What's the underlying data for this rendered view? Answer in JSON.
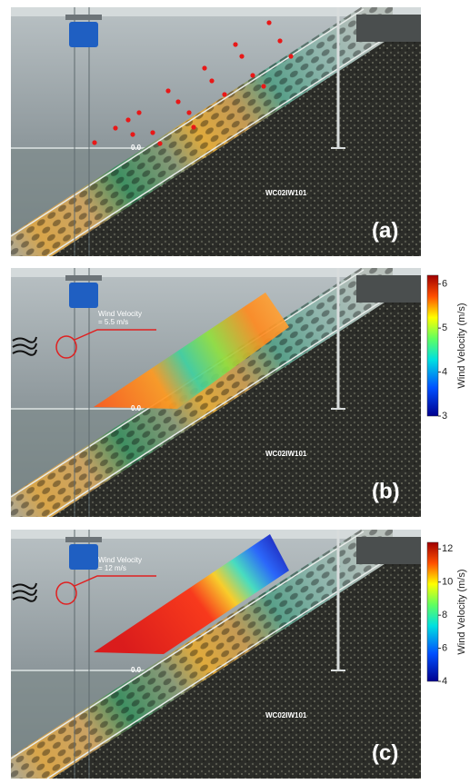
{
  "panels": [
    {
      "label": "(a)",
      "zero_label": "0.0",
      "code": "WC02IW101"
    },
    {
      "label": "(b)",
      "zero_label": "0.0",
      "code": "WC02IW101",
      "annotation": {
        "title": "Wind Velocity",
        "value": "= 5.5 m/s"
      },
      "colorbar": {
        "title": "Wind Velocity (m/s)",
        "range": [
          3,
          6.2
        ],
        "ticks": [
          3,
          4,
          5,
          6
        ]
      }
    },
    {
      "label": "(c)",
      "zero_label": "0.0",
      "code": "WC02IW101",
      "annotation": {
        "title": "Wind Velocity",
        "value": "= 12 m/s"
      },
      "colorbar": {
        "title": "Wind Velocity (m/s)",
        "range": [
          4,
          12.4
        ],
        "ticks": [
          4,
          6,
          8,
          10,
          12
        ]
      }
    }
  ]
}
